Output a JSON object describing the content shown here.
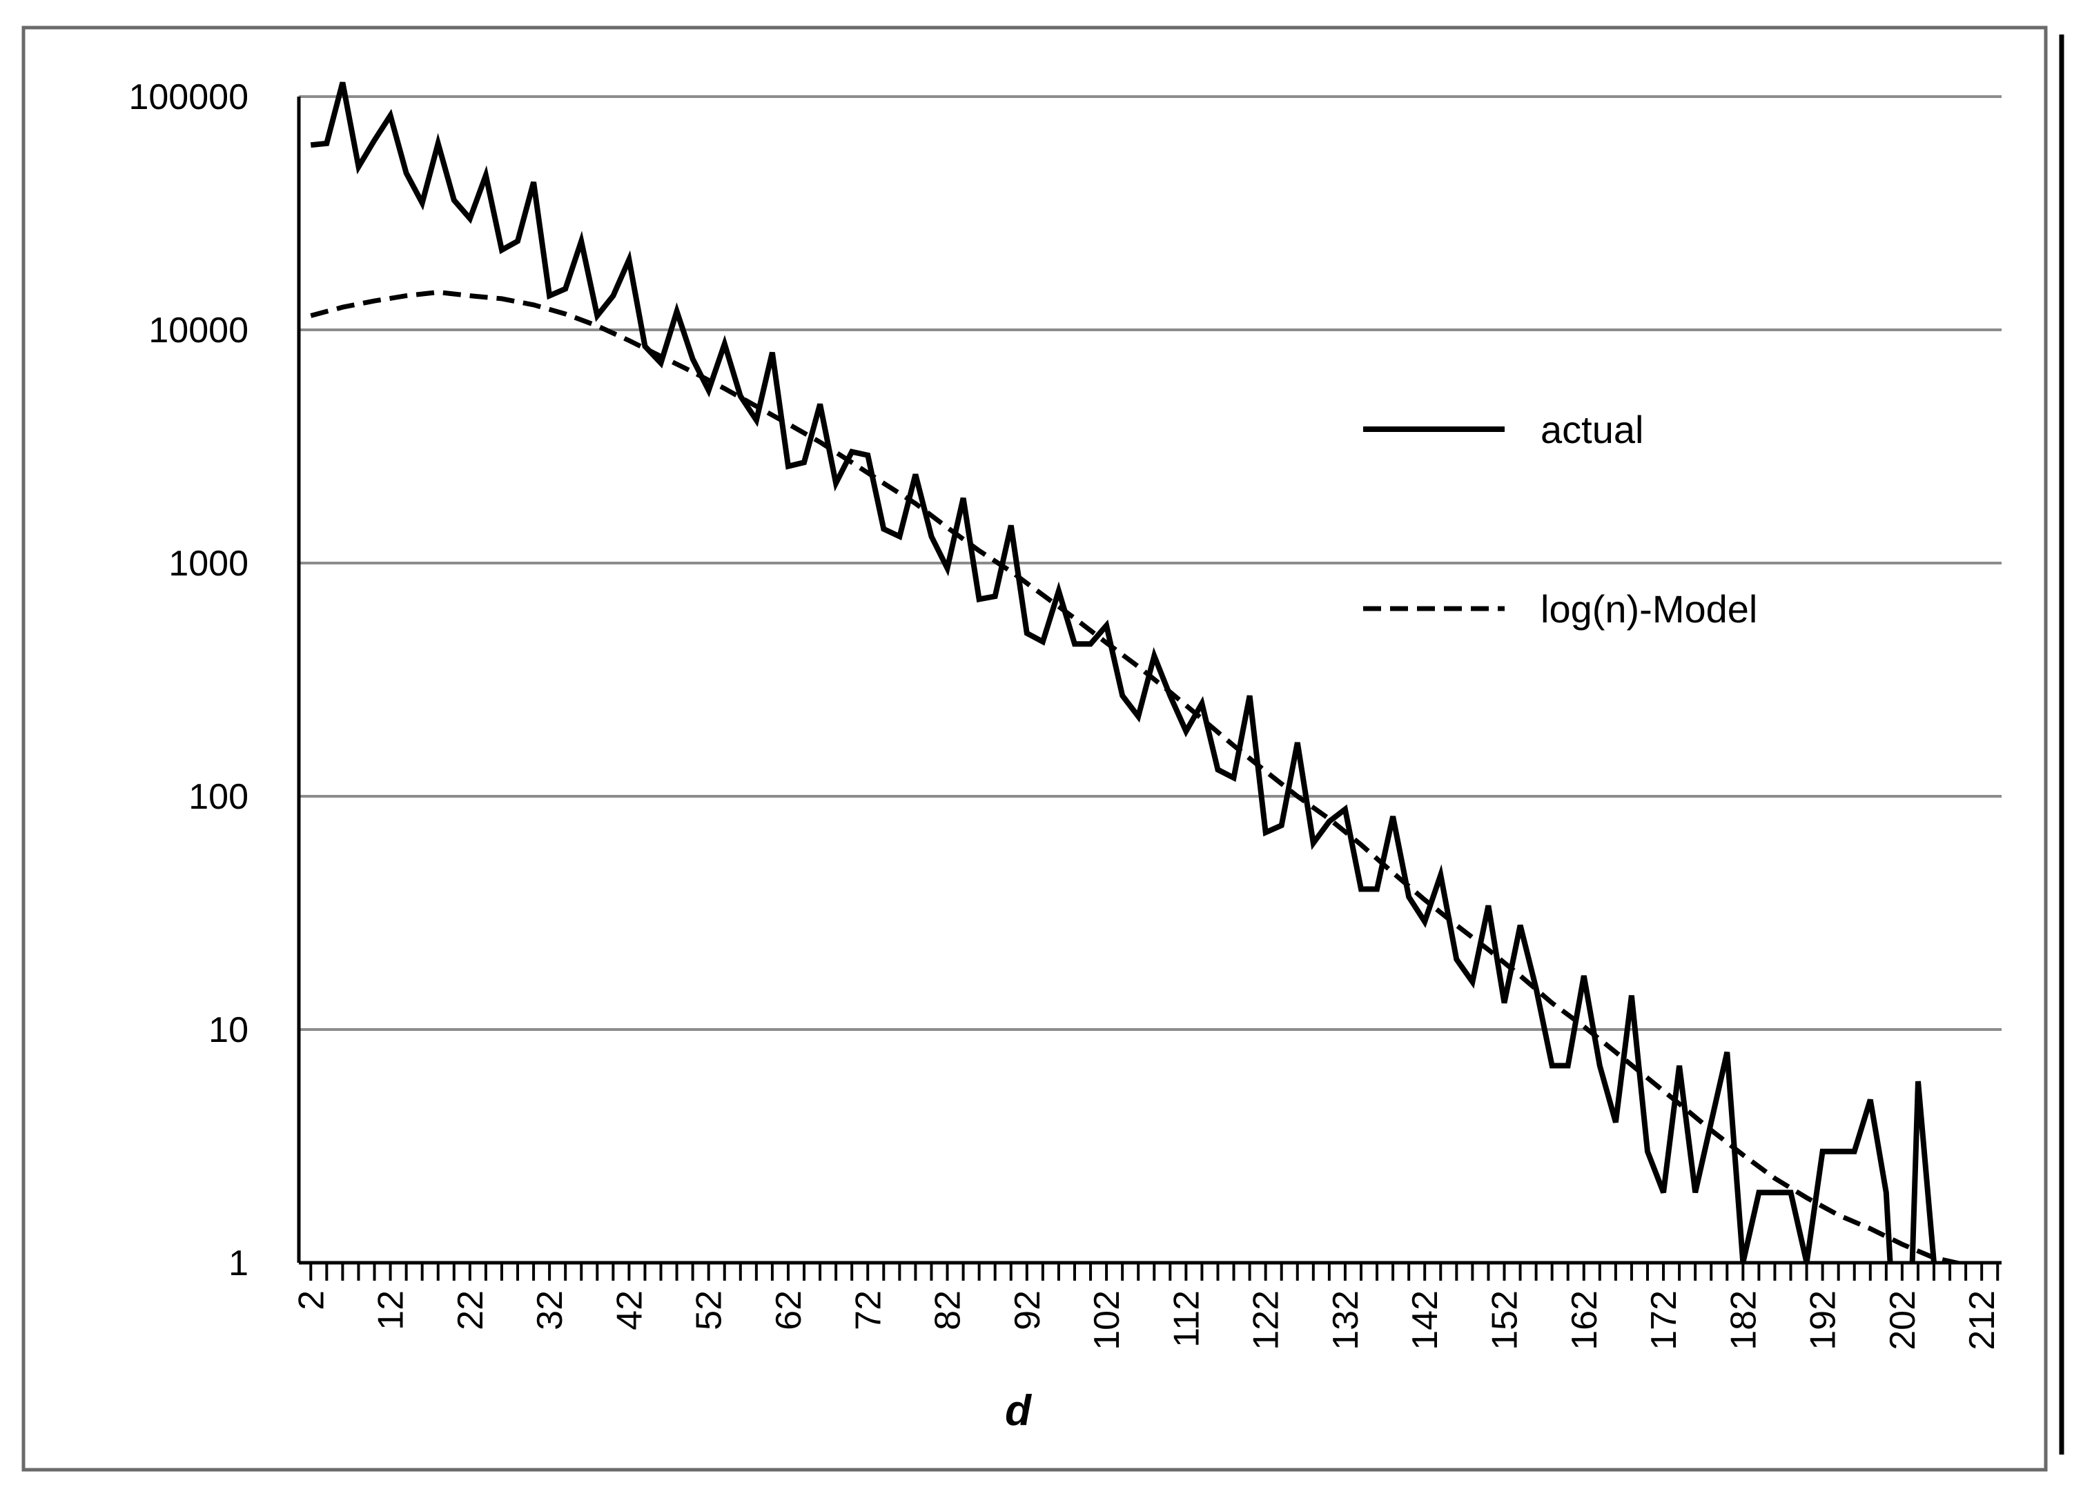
{
  "chart_data": {
    "type": "line",
    "title": "",
    "xlabel": "d",
    "ylabel": "",
    "yscale": "log",
    "ylim": [
      1,
      100000
    ],
    "xlim": [
      2,
      214
    ],
    "grid": "horizontal",
    "legend_position": "right",
    "y_ticks": [
      "1",
      "10",
      "100",
      "1000",
      "10000",
      "100000"
    ],
    "x_ticks": [
      "2",
      "12",
      "22",
      "32",
      "42",
      "52",
      "62",
      "72",
      "82",
      "92",
      "102",
      "112",
      "122",
      "132",
      "142",
      "152",
      "162",
      "172",
      "182",
      "192",
      "202",
      "212"
    ],
    "series": [
      {
        "name": "actual",
        "style": "solid",
        "color": "#000000",
        "points": [
          [
            2,
            62000
          ],
          [
            4,
            63000
          ],
          [
            6,
            115000
          ],
          [
            8,
            50000
          ],
          [
            10,
            65000
          ],
          [
            12,
            83000
          ],
          [
            14,
            47000
          ],
          [
            16,
            35000
          ],
          [
            18,
            63000
          ],
          [
            20,
            36000
          ],
          [
            22,
            30000
          ],
          [
            24,
            46000
          ],
          [
            26,
            22000
          ],
          [
            28,
            24000
          ],
          [
            30,
            43000
          ],
          [
            32,
            14000
          ],
          [
            34,
            15000
          ],
          [
            36,
            24000
          ],
          [
            38,
            11500
          ],
          [
            40,
            14000
          ],
          [
            42,
            20000
          ],
          [
            44,
            8500
          ],
          [
            46,
            7200
          ],
          [
            48,
            12000
          ],
          [
            50,
            7500
          ],
          [
            52,
            5500
          ],
          [
            54,
            8700
          ],
          [
            56,
            5200
          ],
          [
            58,
            4100
          ],
          [
            60,
            8000
          ],
          [
            62,
            2600
          ],
          [
            64,
            2700
          ],
          [
            66,
            4800
          ],
          [
            68,
            2200
          ],
          [
            70,
            3000
          ],
          [
            72,
            2900
          ],
          [
            74,
            1400
          ],
          [
            76,
            1300
          ],
          [
            78,
            2400
          ],
          [
            80,
            1300
          ],
          [
            82,
            950
          ],
          [
            84,
            1900
          ],
          [
            86,
            700
          ],
          [
            88,
            720
          ],
          [
            90,
            1450
          ],
          [
            92,
            500
          ],
          [
            94,
            460
          ],
          [
            96,
            760
          ],
          [
            98,
            450
          ],
          [
            100,
            450
          ],
          [
            102,
            540
          ],
          [
            104,
            270
          ],
          [
            106,
            220
          ],
          [
            108,
            400
          ],
          [
            110,
            270
          ],
          [
            112,
            190
          ],
          [
            114,
            250
          ],
          [
            116,
            130
          ],
          [
            118,
            120
          ],
          [
            120,
            270
          ],
          [
            122,
            70
          ],
          [
            124,
            75
          ],
          [
            126,
            170
          ],
          [
            128,
            63
          ],
          [
            130,
            78
          ],
          [
            132,
            88
          ],
          [
            134,
            40
          ],
          [
            136,
            40
          ],
          [
            138,
            82
          ],
          [
            140,
            37
          ],
          [
            142,
            29
          ],
          [
            144,
            46
          ],
          [
            146,
            20
          ],
          [
            148,
            16
          ],
          [
            150,
            34
          ],
          [
            152,
            13
          ],
          [
            154,
            28
          ],
          [
            156,
            15
          ],
          [
            158,
            7
          ],
          [
            160,
            7
          ],
          [
            162,
            17
          ],
          [
            164,
            7
          ],
          [
            166,
            4
          ],
          [
            168,
            14
          ],
          [
            170,
            3
          ],
          [
            172,
            2
          ],
          [
            174,
            7
          ],
          [
            176,
            2
          ],
          [
            178,
            4
          ],
          [
            180,
            8
          ],
          [
            182,
            1
          ],
          [
            184,
            2
          ],
          [
            186,
            2
          ],
          [
            188,
            2
          ],
          [
            190,
            1
          ],
          [
            192,
            3
          ],
          [
            194,
            3
          ],
          [
            196,
            3
          ],
          [
            198,
            5
          ],
          [
            200,
            2
          ],
          [
            201,
            0.5
          ],
          [
            203,
            0.5
          ],
          [
            204,
            6
          ],
          [
            206,
            1
          ],
          [
            208,
            0.9
          ]
        ]
      },
      {
        "name": "log(n)-Model",
        "style": "dashed",
        "color": "#000000",
        "points": [
          [
            2,
            11500
          ],
          [
            6,
            12500
          ],
          [
            10,
            13300
          ],
          [
            14,
            14000
          ],
          [
            18,
            14500
          ],
          [
            22,
            14000
          ],
          [
            26,
            13600
          ],
          [
            30,
            12800
          ],
          [
            34,
            11700
          ],
          [
            38,
            10400
          ],
          [
            42,
            9000
          ],
          [
            46,
            7700
          ],
          [
            50,
            6600
          ],
          [
            54,
            5600
          ],
          [
            58,
            4700
          ],
          [
            62,
            3950
          ],
          [
            66,
            3300
          ],
          [
            70,
            2700
          ],
          [
            74,
            2200
          ],
          [
            78,
            1800
          ],
          [
            82,
            1420
          ],
          [
            86,
            1130
          ],
          [
            90,
            920
          ],
          [
            94,
            730
          ],
          [
            98,
            580
          ],
          [
            102,
            455
          ],
          [
            106,
            360
          ],
          [
            110,
            280
          ],
          [
            114,
            215
          ],
          [
            118,
            165
          ],
          [
            122,
            128
          ],
          [
            126,
            100
          ],
          [
            130,
            80
          ],
          [
            134,
            62
          ],
          [
            138,
            47
          ],
          [
            142,
            36
          ],
          [
            146,
            28
          ],
          [
            150,
            22
          ],
          [
            154,
            17
          ],
          [
            158,
            13
          ],
          [
            162,
            10.3
          ],
          [
            166,
            8
          ],
          [
            170,
            6.2
          ],
          [
            174,
            4.8
          ],
          [
            178,
            3.7
          ],
          [
            182,
            2.9
          ],
          [
            186,
            2.3
          ],
          [
            190,
            1.9
          ],
          [
            194,
            1.6
          ],
          [
            198,
            1.4
          ],
          [
            202,
            1.2
          ],
          [
            206,
            1.05
          ],
          [
            210,
            0.98
          ],
          [
            212,
            0.96
          ]
        ]
      }
    ]
  }
}
